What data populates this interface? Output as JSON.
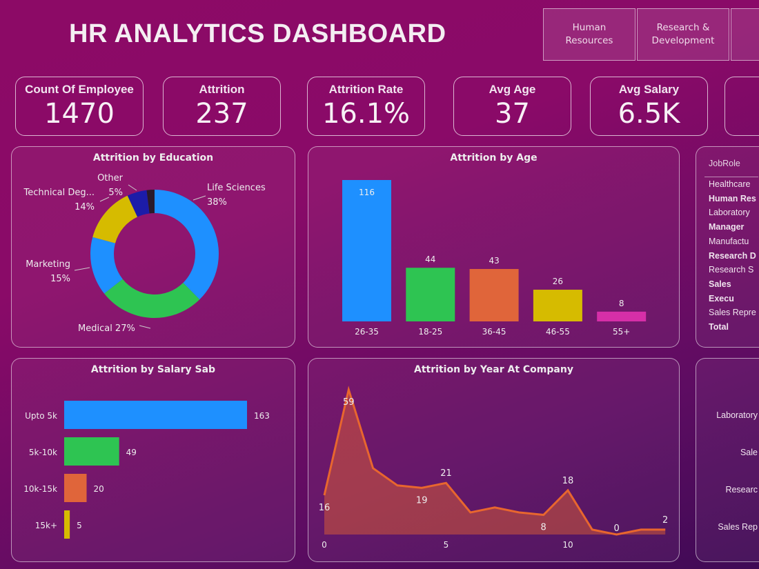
{
  "header": {
    "title": "HR ANALYTICS DASHBOARD"
  },
  "departments": [
    "Human\nResources",
    "Research &\nDevelopment",
    ""
  ],
  "kpis": [
    {
      "label": "Count Of Employee",
      "value": "1470"
    },
    {
      "label": "Attrition",
      "value": "237"
    },
    {
      "label": "Attrition Rate",
      "value": "16.1%"
    },
    {
      "label": "Avg Age",
      "value": "37"
    },
    {
      "label": "Avg Salary",
      "value": "6.5K"
    },
    {
      "label": "",
      "value": ""
    }
  ],
  "jobrole_table": {
    "header": "JobRole",
    "rows": [
      "Healthcare",
      "Human Res",
      "Laboratory",
      "Manager",
      "Manufactu",
      "Research D",
      "Research S",
      "Sales Execu",
      "Sales Repre"
    ],
    "total": "Total"
  },
  "jobrole_chart": {
    "labels": [
      "Laboratory",
      "Sale",
      "Researc",
      "Sales Rep"
    ]
  },
  "chart_data": [
    {
      "type": "pie",
      "title": "Attrition by Education",
      "donut": true,
      "slices": [
        {
          "name": "Life Sciences",
          "label": "38%",
          "value": 38,
          "color": "#1e90ff"
        },
        {
          "name": "Medical",
          "label": "27%",
          "value": 27,
          "color": "#2ec452"
        },
        {
          "name": "Marketing",
          "label": "15%",
          "value": 15,
          "color": "#1e90ff"
        },
        {
          "name": "Technical Deg...",
          "label": "14%",
          "value": 14,
          "color": "#d6bb00"
        },
        {
          "name": "Other",
          "label": "5%",
          "value": 5,
          "color": "#1c1ca8"
        },
        {
          "name": "",
          "label": "",
          "value": 2,
          "color": "#2a1a2a"
        }
      ]
    },
    {
      "type": "bar",
      "title": "Attrition by Age",
      "categories": [
        "26-35",
        "18-25",
        "36-45",
        "46-55",
        "55+"
      ],
      "values": [
        116,
        44,
        43,
        26,
        8
      ],
      "colors": [
        "#1e90ff",
        "#2ec452",
        "#e0653a",
        "#d6bb00",
        "#d62fa8"
      ]
    },
    {
      "type": "bar",
      "orientation": "horizontal",
      "title": "Attrition by Salary Sab",
      "categories": [
        "Upto 5k",
        "5k-10k",
        "10k-15k",
        "15k+"
      ],
      "values": [
        163,
        49,
        20,
        5
      ],
      "colors": [
        "#1e90ff",
        "#2ec452",
        "#e0653a",
        "#d6bb00"
      ]
    },
    {
      "type": "area",
      "title": "Attrition by Year At Company",
      "x": [
        0,
        1,
        2,
        3,
        4,
        5,
        6,
        7,
        8,
        9,
        10,
        11,
        12,
        13,
        14
      ],
      "values": [
        16,
        59,
        27,
        20,
        19,
        21,
        9,
        11,
        9,
        8,
        18,
        2,
        0,
        2,
        2
      ],
      "labelled": [
        0,
        1,
        4,
        5,
        9,
        10,
        12,
        14
      ],
      "xticks": [
        0,
        5,
        10
      ],
      "color": "#e8662e"
    }
  ]
}
